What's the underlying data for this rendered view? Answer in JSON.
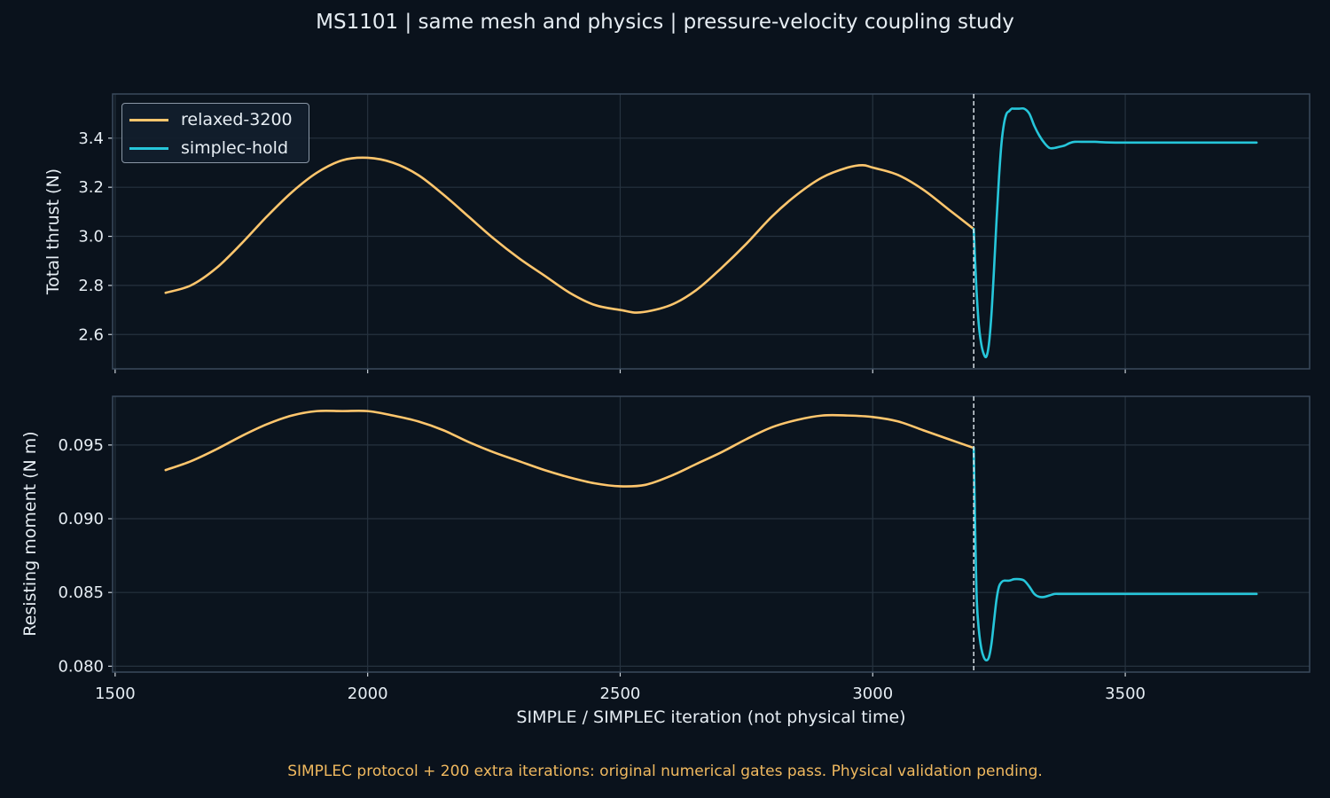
{
  "title": "MS1101 | same mesh and physics | pressure-velocity coupling study",
  "footer_note": "SIMPLEC protocol + 200 extra iterations: original numerical gates pass. Physical validation pending.",
  "colors": {
    "background": "#0a121c",
    "panel_border": "#3a4a5c",
    "grid": "#26323f",
    "relaxed": "#ffc66d",
    "simplec": "#26c6da",
    "marker": "#e6edf3",
    "footer": "#f0b95f"
  },
  "chart_data": [
    {
      "type": "line",
      "ylabel": "Total thrust (N)",
      "xlabel": "",
      "xlim": [
        1495,
        3865
      ],
      "ylim": [
        2.46,
        3.58
      ],
      "yticks": [
        2.6,
        2.8,
        3.0,
        3.2,
        3.4
      ],
      "ytick_labels": [
        "2.6",
        "2.8",
        "3.0",
        "3.2",
        "3.4"
      ],
      "grid": true,
      "legend_position": "top-left",
      "vline_x": 3200,
      "series": [
        {
          "name": "relaxed-3200",
          "color": "#ffc66d",
          "x": [
            1600,
            1650,
            1700,
            1750,
            1800,
            1850,
            1900,
            1950,
            2000,
            2050,
            2100,
            2150,
            2200,
            2250,
            2300,
            2350,
            2400,
            2450,
            2500,
            2540,
            2600,
            2650,
            2700,
            2750,
            2800,
            2850,
            2900,
            2950,
            2980,
            3000,
            3050,
            3100,
            3150,
            3200
          ],
          "y": [
            2.77,
            2.8,
            2.87,
            2.97,
            3.08,
            3.18,
            3.26,
            3.31,
            3.32,
            3.3,
            3.25,
            3.17,
            3.08,
            2.99,
            2.91,
            2.84,
            2.77,
            2.72,
            2.7,
            2.69,
            2.72,
            2.78,
            2.87,
            2.97,
            3.08,
            3.17,
            3.24,
            3.28,
            3.29,
            3.28,
            3.25,
            3.19,
            3.11,
            3.03
          ]
        },
        {
          "name": "simplec-hold",
          "color": "#26c6da",
          "x": [
            3200,
            3205,
            3210,
            3215,
            3220,
            3225,
            3230,
            3235,
            3240,
            3245,
            3250,
            3255,
            3260,
            3265,
            3270,
            3275,
            3280,
            3290,
            3300,
            3310,
            3320,
            3330,
            3340,
            3350,
            3360,
            3370,
            3380,
            3390,
            3400,
            3420,
            3440,
            3460,
            3480,
            3500,
            3550,
            3600,
            3650,
            3700,
            3760
          ],
          "y": [
            3.03,
            2.8,
            2.64,
            2.56,
            2.52,
            2.51,
            2.56,
            2.68,
            2.86,
            3.06,
            3.24,
            3.38,
            3.46,
            3.5,
            3.51,
            3.52,
            3.52,
            3.52,
            3.52,
            3.5,
            3.45,
            3.41,
            3.38,
            3.36,
            3.36,
            3.365,
            3.37,
            3.38,
            3.385,
            3.385,
            3.385,
            3.383,
            3.382,
            3.382,
            3.382,
            3.382,
            3.382,
            3.382,
            3.382
          ]
        }
      ]
    },
    {
      "type": "line",
      "ylabel": "Resisting moment (N m)",
      "xlabel": "SIMPLE / SIMPLEC iteration (not physical time)",
      "xlim": [
        1495,
        3865
      ],
      "ylim": [
        0.0796,
        0.0983
      ],
      "yticks": [
        0.08,
        0.085,
        0.09,
        0.095
      ],
      "ytick_labels": [
        "0.080",
        "0.085",
        "0.090",
        "0.095"
      ],
      "xticks": [
        1500,
        2000,
        2500,
        3000,
        3500
      ],
      "xtick_labels": [
        "1500",
        "2000",
        "2500",
        "3000",
        "3500"
      ],
      "grid": true,
      "vline_x": 3200,
      "series": [
        {
          "name": "relaxed-3200",
          "color": "#ffc66d",
          "x": [
            1600,
            1650,
            1700,
            1750,
            1800,
            1850,
            1900,
            1950,
            2000,
            2050,
            2100,
            2150,
            2200,
            2250,
            2300,
            2350,
            2400,
            2450,
            2500,
            2550,
            2600,
            2650,
            2700,
            2750,
            2800,
            2850,
            2900,
            2950,
            3000,
            3050,
            3100,
            3150,
            3200
          ],
          "y": [
            0.0933,
            0.0939,
            0.0947,
            0.0956,
            0.0964,
            0.097,
            0.0973,
            0.0973,
            0.0973,
            0.097,
            0.0966,
            0.096,
            0.0952,
            0.0945,
            0.0939,
            0.0933,
            0.0928,
            0.0924,
            0.0922,
            0.0923,
            0.0929,
            0.0937,
            0.0945,
            0.0954,
            0.0962,
            0.0967,
            0.097,
            0.097,
            0.0969,
            0.0966,
            0.096,
            0.0954,
            0.0948
          ]
        },
        {
          "name": "simplec-hold",
          "color": "#26c6da",
          "x": [
            3200,
            3203,
            3206,
            3210,
            3215,
            3220,
            3225,
            3230,
            3235,
            3240,
            3245,
            3250,
            3255,
            3260,
            3270,
            3280,
            3290,
            3300,
            3310,
            3320,
            3330,
            3340,
            3350,
            3360,
            3370,
            3380,
            3400,
            3420,
            3440,
            3460,
            3500,
            3550,
            3600,
            3650,
            3700,
            3760
          ],
          "y": [
            0.0948,
            0.089,
            0.0845,
            0.0825,
            0.0812,
            0.0806,
            0.0804,
            0.0806,
            0.0815,
            0.083,
            0.0845,
            0.0854,
            0.0857,
            0.0858,
            0.0858,
            0.0859,
            0.0859,
            0.0858,
            0.0854,
            0.0849,
            0.0847,
            0.0847,
            0.0848,
            0.0849,
            0.0849,
            0.0849,
            0.0849,
            0.0849,
            0.0849,
            0.0849,
            0.0849,
            0.0849,
            0.0849,
            0.0849,
            0.0849,
            0.0849
          ]
        }
      ]
    }
  ]
}
